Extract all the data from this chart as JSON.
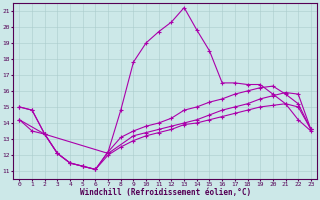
{
  "xlabel": "Windchill (Refroidissement éolien,°C)",
  "bg_color": "#cce8e8",
  "line_color": "#aa00aa",
  "grid_color": "#aacccc",
  "xlim": [
    -0.5,
    23.5
  ],
  "ylim": [
    10.5,
    21.5
  ],
  "xticks": [
    0,
    1,
    2,
    3,
    4,
    5,
    6,
    7,
    8,
    9,
    10,
    11,
    12,
    13,
    14,
    15,
    16,
    17,
    18,
    19,
    20,
    21,
    22,
    23
  ],
  "yticks": [
    11,
    12,
    13,
    14,
    15,
    16,
    17,
    18,
    19,
    20,
    21
  ],
  "line1_x": [
    0,
    1,
    2,
    3,
    4,
    5,
    6,
    7,
    8,
    9,
    10,
    11,
    12,
    13,
    14,
    15,
    16,
    17,
    18,
    19,
    20,
    21,
    22,
    23
  ],
  "line1_y": [
    15.0,
    14.8,
    13.3,
    12.1,
    11.5,
    11.3,
    11.1,
    12.2,
    14.8,
    17.8,
    19.0,
    19.7,
    20.3,
    21.2,
    19.8,
    18.5,
    16.5,
    16.5,
    16.4,
    16.4,
    15.8,
    15.2,
    14.2,
    13.5
  ],
  "line2_x": [
    0,
    1,
    2,
    3,
    4,
    5,
    6,
    7,
    8,
    9,
    10,
    11,
    12,
    13,
    14,
    15,
    16,
    17,
    18,
    19,
    20,
    21,
    22,
    23
  ],
  "line2_y": [
    15.0,
    14.8,
    13.3,
    12.1,
    11.5,
    11.3,
    11.1,
    12.2,
    13.1,
    13.5,
    13.8,
    14.0,
    14.3,
    14.8,
    15.0,
    15.3,
    15.5,
    15.8,
    16.0,
    16.2,
    16.3,
    15.8,
    15.2,
    13.6
  ],
  "line3_x": [
    0,
    1,
    2,
    3,
    4,
    5,
    6,
    7,
    8,
    9,
    10,
    11,
    12,
    13,
    14,
    15,
    16,
    17,
    18,
    19,
    20,
    21,
    22,
    23
  ],
  "line3_y": [
    14.2,
    13.5,
    13.3,
    12.1,
    11.5,
    11.3,
    11.1,
    12.0,
    12.5,
    12.9,
    13.2,
    13.4,
    13.6,
    13.9,
    14.0,
    14.2,
    14.4,
    14.6,
    14.8,
    15.0,
    15.1,
    15.2,
    15.0,
    13.6
  ],
  "line4_x": [
    0,
    2,
    7,
    9,
    10,
    11,
    12,
    13,
    14,
    15,
    16,
    17,
    18,
    19,
    20,
    21,
    22,
    23
  ],
  "line4_y": [
    14.2,
    13.3,
    12.1,
    13.2,
    13.4,
    13.6,
    13.8,
    14.0,
    14.2,
    14.5,
    14.8,
    15.0,
    15.2,
    15.5,
    15.7,
    15.9,
    15.8,
    13.6
  ],
  "marker": "+",
  "markersize": 3,
  "linewidth": 0.8,
  "tick_fontsize": 4.5,
  "xlabel_fontsize": 5.5,
  "fig_width": 3.2,
  "fig_height": 2.0,
  "dpi": 100
}
